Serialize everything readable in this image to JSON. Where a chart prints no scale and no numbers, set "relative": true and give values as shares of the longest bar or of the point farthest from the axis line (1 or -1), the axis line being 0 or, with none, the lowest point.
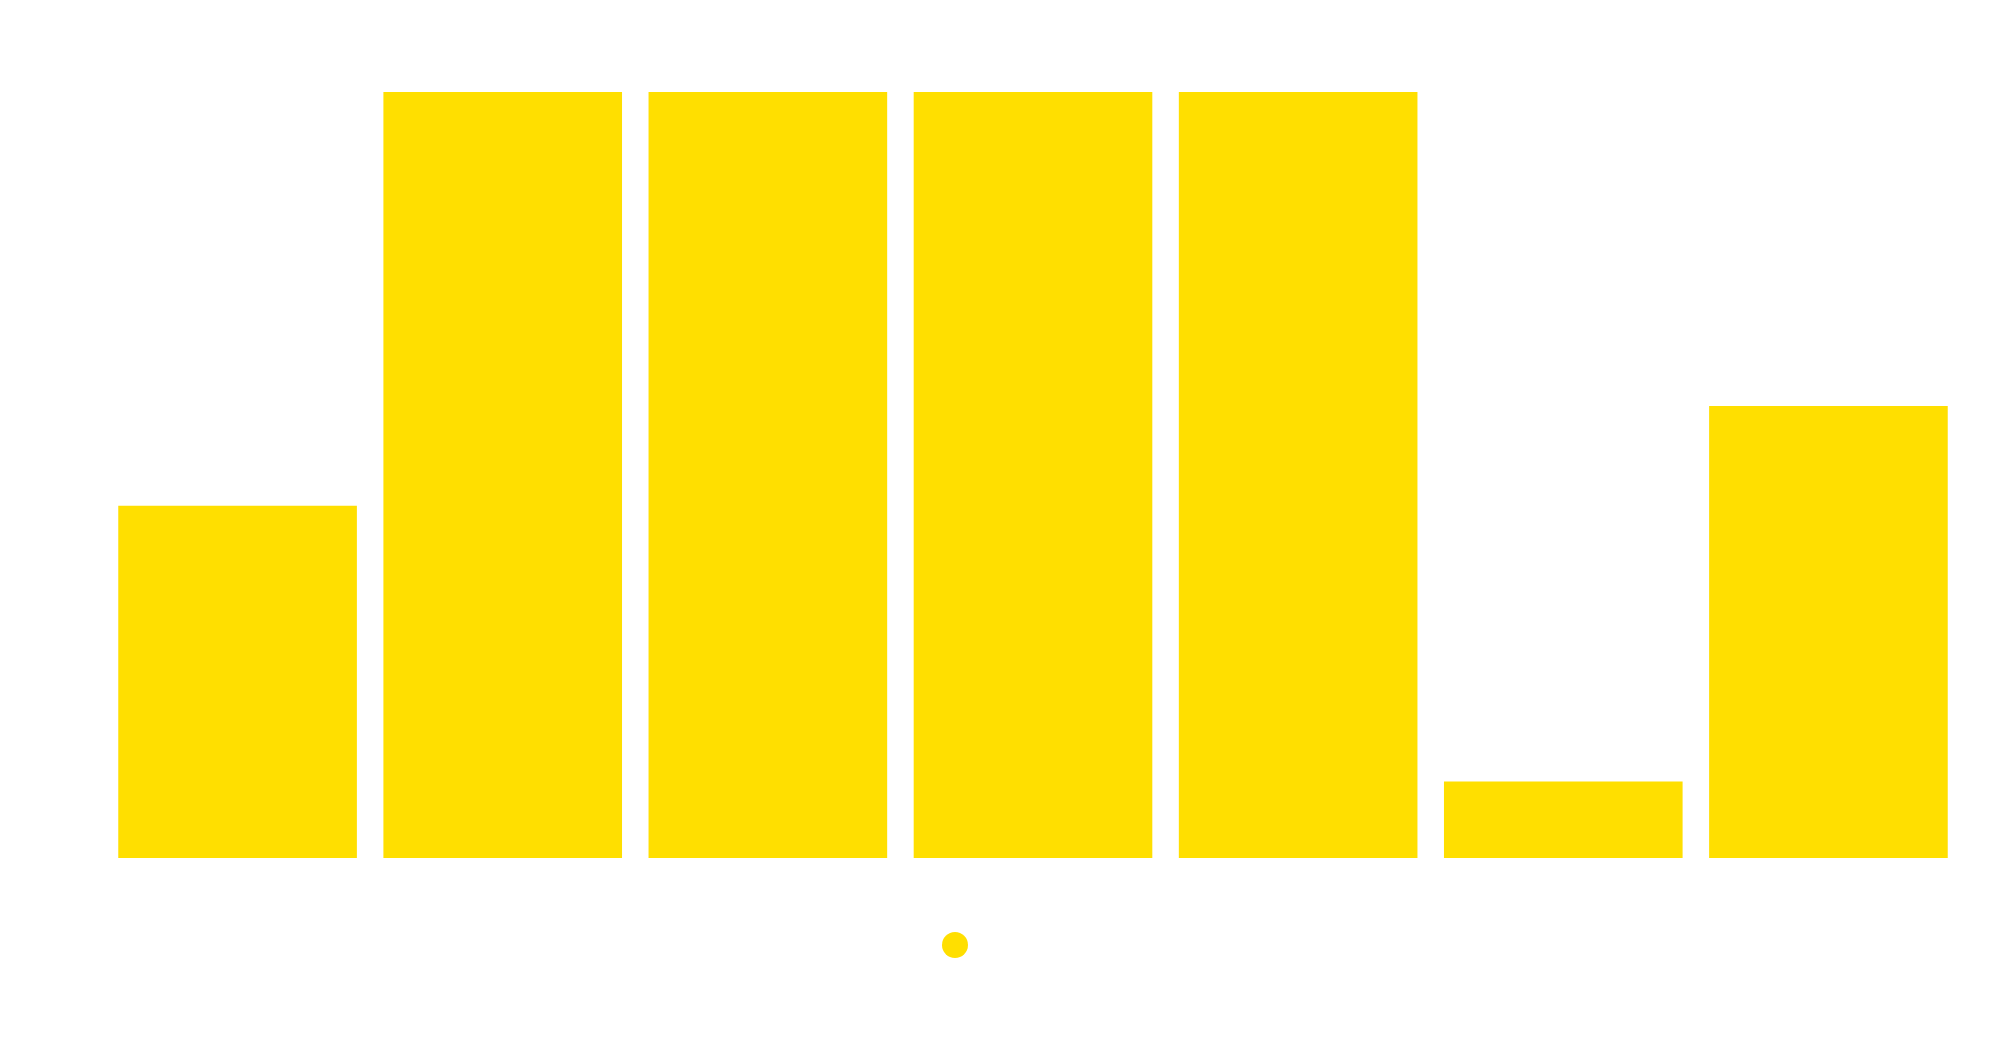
{
  "chart_data": {
    "type": "bar",
    "relative": true,
    "categories": [
      null,
      null,
      null,
      null,
      null,
      null,
      null
    ],
    "series": [
      {
        "color": "#ffdf00",
        "values": [
          0.46,
          1,
          1,
          1,
          1,
          0.1,
          0.59
        ]
      }
    ],
    "grid": false
  }
}
